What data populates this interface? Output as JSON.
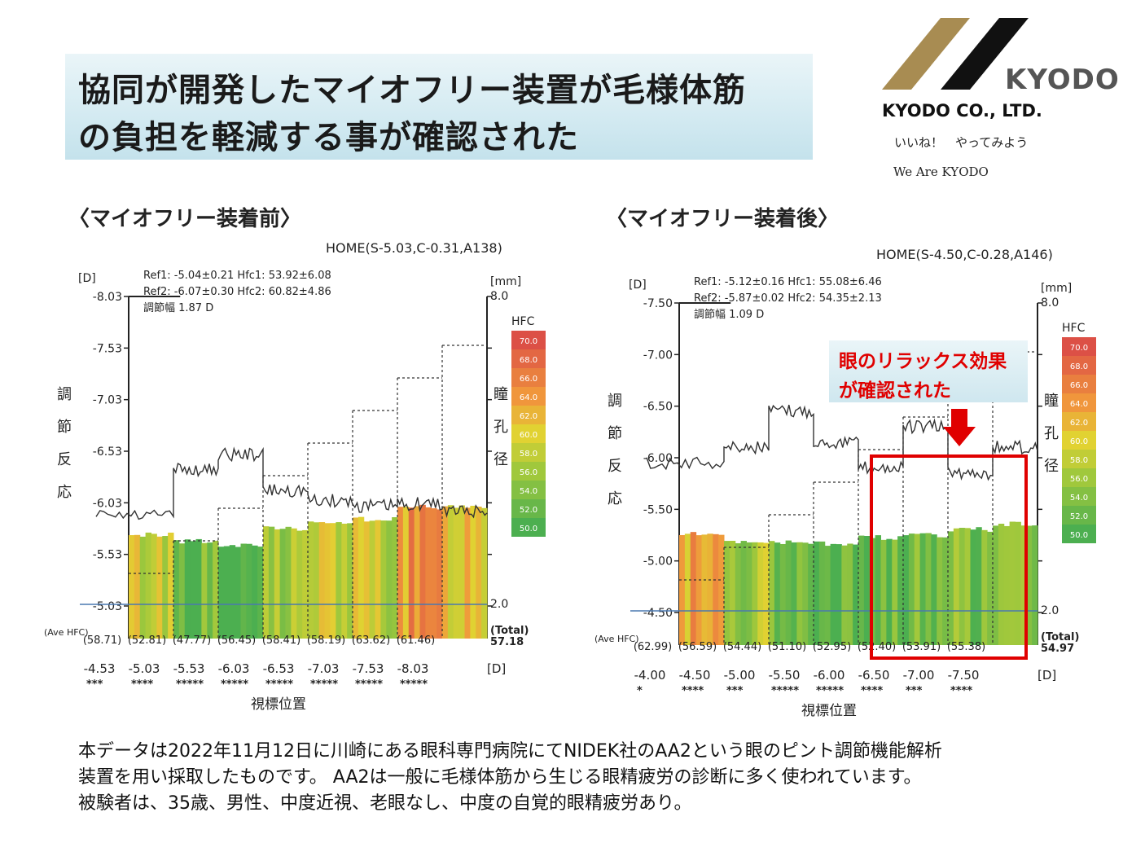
{
  "title": {
    "line1": "協同が開発したマイオフリー装置が毛様体筋",
    "line2": "の負担を軽減する事が確認された"
  },
  "logo": {
    "brand": "KYODO",
    "company": "KYODO CO., LTD.",
    "slogan_jp": "いいね！　やってみよう",
    "slogan_en": "We Are KYODO",
    "colors": {
      "gold": "#a88c52",
      "black": "#111111",
      "gray": "#555555"
    }
  },
  "sections": {
    "before": "〈マイオフリー装着前〉",
    "after": "〈マイオフリー装着後〉"
  },
  "annotation": {
    "text1": "眼のリラックス効果",
    "text2": "が確認された",
    "color": "#e00000"
  },
  "footer": {
    "line1": "本データは2022年11月12日に川崎にある眼科専門病院にてNIDEK社のAA2という眼のピント調節機能解析",
    "line2": "装置を用い採取したものです。  AA2は一般に毛様体筋から生じる眼精疲労の診断に多く使われています。",
    "line3": "被験者は、35歳、男性、中度近視、老眼なし、中度の自覚的眼精疲労あり。"
  },
  "chart_data": [
    {
      "type": "bar",
      "header": "HOME(S-5.03,C-0.31,A138)",
      "ref_lines": [
        "Ref1: -5.04±0.21  Hfc1: 53.92±6.08",
        "Ref2: -6.07±0.30  Hfc2: 60.82±4.86",
        "調節幅 1.87 D"
      ],
      "left_unit": "[D]",
      "right_unit": "[mm]",
      "right_top": "8.0",
      "right_bottom": "2.0",
      "y_ticks": [
        "-8.03",
        "-7.53",
        "-7.03",
        "-6.53",
        "-6.03",
        "-5.53",
        "-5.03"
      ],
      "ylabel": "調節反応",
      "ylabel_right": "瞳孔径",
      "x_ticks": [
        "-4.53",
        "-5.03",
        "-5.53",
        "-6.03",
        "-6.53",
        "-7.03",
        "-7.53",
        "-8.03"
      ],
      "x_unit": "[D]",
      "stars": [
        "***",
        "****",
        "*****",
        "*****",
        "*****",
        "*****",
        "*****",
        "*****"
      ],
      "xlabel": "視標位置",
      "hfc_values": [
        "(58.71)",
        "(52.81)",
        "(47.77)",
        "(56.45)",
        "(58.41)",
        "(58.19)",
        "(63.62)",
        "(61.46)"
      ],
      "hfc_numeric": [
        58.71,
        52.81,
        47.77,
        56.45,
        58.41,
        58.19,
        63.62,
        61.46
      ],
      "ave_label": "(Ave HFC)",
      "total_label": "(Total)",
      "total_value": "57.18",
      "target_steps": [
        -4.53,
        -5.03,
        -5.53,
        -6.03,
        -6.53,
        -7.03,
        -7.53,
        -8.03
      ],
      "response_levels": [
        -5.9,
        -6.35,
        -6.5,
        -6.15,
        -6.05,
        -6.0,
        -6.02,
        -5.95
      ],
      "legend_title": "HFC",
      "legend": [
        "70.0",
        "68.0",
        "66.0",
        "64.0",
        "62.0",
        "60.0",
        "58.0",
        "56.0",
        "54.0",
        "52.0",
        "50.0"
      ]
    },
    {
      "type": "bar",
      "header": "HOME(S-4.50,C-0.28,A146)",
      "ref_lines": [
        "Ref1: -5.12±0.16  Hfc1: 55.08±6.46",
        "Ref2: -5.87±0.02  Hfc2: 54.35±2.13",
        "調節幅 1.09 D"
      ],
      "left_unit": "[D]",
      "right_unit": "[mm]",
      "right_top": "8.0",
      "right_bottom": "2.0",
      "y_ticks": [
        "-7.50",
        "-7.00",
        "-6.50",
        "-6.00",
        "-5.50",
        "-5.00",
        "-4.50"
      ],
      "ylabel": "調節反応",
      "ylabel_right": "瞳孔径",
      "x_ticks": [
        "-4.00",
        "-4.50",
        "-5.00",
        "-5.50",
        "-6.00",
        "-6.50",
        "-7.00",
        "-7.50"
      ],
      "x_unit": "[D]",
      "stars": [
        "*",
        "****",
        "***",
        "*****",
        "*****",
        "****",
        "***",
        "****"
      ],
      "xlabel": "視標位置",
      "hfc_values": [
        "(62.99)",
        "(56.59)",
        "(54.44)",
        "(51.10)",
        "(52.95)",
        "(52.40)",
        "(53.91)",
        "(55.38)"
      ],
      "hfc_numeric": [
        62.99,
        56.59,
        54.44,
        51.1,
        52.95,
        52.4,
        53.91,
        55.38
      ],
      "ave_label": "(Ave HFC)",
      "total_label": "(Total)",
      "total_value": "54.97",
      "target_steps": [
        -4.0,
        -4.5,
        -5.0,
        -5.5,
        -6.0,
        -6.5,
        -7.0,
        -7.5
      ],
      "response_levels": [
        -5.95,
        -6.1,
        -6.45,
        -6.15,
        -5.9,
        -6.3,
        -5.85,
        -6.1
      ],
      "legend_title": "HFC",
      "legend": [
        "70.0",
        "68.0",
        "66.0",
        "64.0",
        "62.0",
        "60.0",
        "58.0",
        "56.0",
        "54.0",
        "52.0",
        "50.0"
      ]
    }
  ]
}
